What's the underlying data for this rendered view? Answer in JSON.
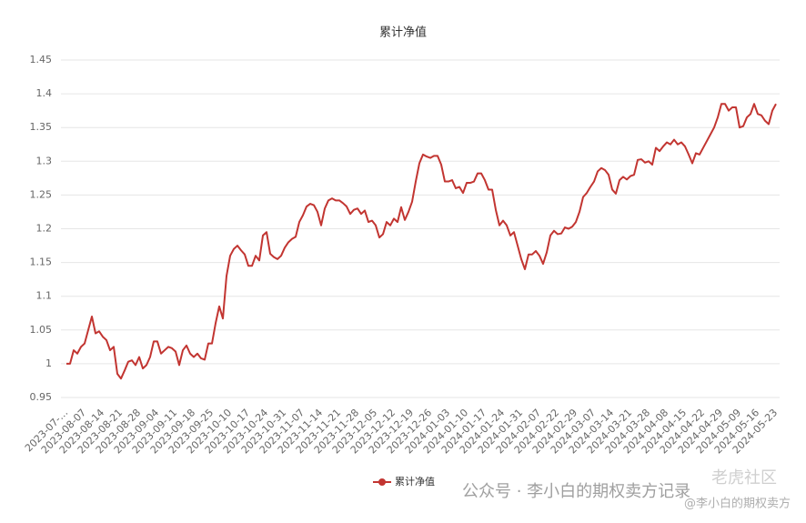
{
  "chart_data": {
    "type": "line",
    "title": "累计净值",
    "categories": [
      "2023-07-…",
      null,
      null,
      null,
      null,
      "2023-08-07",
      null,
      null,
      null,
      null,
      "2023-08-14",
      null,
      null,
      null,
      null,
      "2023-08-21",
      null,
      null,
      null,
      null,
      "2023-08-28",
      null,
      null,
      null,
      null,
      "2023-09-04",
      null,
      null,
      null,
      null,
      "2023-09-11",
      null,
      null,
      null,
      null,
      "2023-09-18",
      null,
      null,
      null,
      null,
      "2023-09-25",
      null,
      null,
      null,
      null,
      "2023-10-10",
      null,
      null,
      null,
      null,
      "2023-10-17",
      null,
      null,
      null,
      null,
      "2023-10-24",
      null,
      null,
      null,
      null,
      "2023-10-31",
      null,
      null,
      null,
      null,
      "2023-11-07",
      null,
      null,
      null,
      null,
      "2023-11-14",
      null,
      null,
      null,
      null,
      "2023-11-21",
      null,
      null,
      null,
      null,
      "2023-11-28",
      null,
      null,
      null,
      null,
      "2023-12-05",
      null,
      null,
      null,
      null,
      "2023-12-12",
      null,
      null,
      null,
      null,
      "2023-12-19",
      null,
      null,
      null,
      null,
      "2023-12-26",
      null,
      null,
      null,
      null,
      "2024-01-03",
      null,
      null,
      null,
      null,
      "2024-01-10",
      null,
      null,
      null,
      null,
      "2024-01-17",
      null,
      null,
      null,
      null,
      "2024-01-24",
      null,
      null,
      null,
      null,
      "2024-01-31",
      null,
      null,
      null,
      null,
      "2024-02-07",
      null,
      null,
      null,
      null,
      "2024-02-22",
      null,
      null,
      null,
      null,
      "2024-02-29",
      null,
      null,
      null,
      null,
      "2024-03-07",
      null,
      null,
      null,
      null,
      "2024-03-14",
      null,
      null,
      null,
      null,
      "2024-03-21",
      null,
      null,
      null,
      null,
      "2024-03-28",
      null,
      null,
      null,
      null,
      "2024-04-08",
      null,
      null,
      null,
      null,
      "2024-04-15",
      null,
      null,
      null,
      null,
      "2024-04-22",
      null,
      null,
      null,
      null,
      "2024-04-29",
      null,
      null,
      null,
      null,
      "2024-05-09",
      null,
      null,
      null,
      null,
      "2024-05-16",
      null,
      null,
      null,
      null,
      "2024-05-23"
    ],
    "series": [
      {
        "name": "累计净值",
        "color": "#c23531",
        "values": [
          1.0,
          1.0,
          1.02,
          1.015,
          1.025,
          1.03,
          1.05,
          1.07,
          1.045,
          1.048,
          1.04,
          1.035,
          1.02,
          1.025,
          0.985,
          0.978,
          0.99,
          1.003,
          1.005,
          0.998,
          1.01,
          0.993,
          0.998,
          1.01,
          1.033,
          1.033,
          1.015,
          1.02,
          1.025,
          1.023,
          1.018,
          0.998,
          1.02,
          1.027,
          1.015,
          1.01,
          1.015,
          1.008,
          1.006,
          1.03,
          1.03,
          1.06,
          1.085,
          1.067,
          1.13,
          1.16,
          1.17,
          1.175,
          1.168,
          1.162,
          1.145,
          1.145,
          1.16,
          1.153,
          1.19,
          1.195,
          1.163,
          1.158,
          1.155,
          1.16,
          1.172,
          1.18,
          1.185,
          1.188,
          1.21,
          1.22,
          1.233,
          1.237,
          1.235,
          1.225,
          1.205,
          1.23,
          1.242,
          1.245,
          1.242,
          1.242,
          1.238,
          1.233,
          1.222,
          1.228,
          1.23,
          1.222,
          1.227,
          1.21,
          1.212,
          1.205,
          1.187,
          1.192,
          1.21,
          1.205,
          1.215,
          1.21,
          1.232,
          1.213,
          1.225,
          1.24,
          1.27,
          1.297,
          1.31,
          1.307,
          1.305,
          1.308,
          1.308,
          1.295,
          1.27,
          1.27,
          1.272,
          1.26,
          1.262,
          1.253,
          1.268,
          1.268,
          1.27,
          1.282,
          1.282,
          1.272,
          1.258,
          1.258,
          1.228,
          1.205,
          1.212,
          1.205,
          1.19,
          1.195,
          1.175,
          1.155,
          1.14,
          1.162,
          1.162,
          1.167,
          1.16,
          1.148,
          1.165,
          1.19,
          1.197,
          1.192,
          1.193,
          1.202,
          1.2,
          1.203,
          1.21,
          1.225,
          1.247,
          1.253,
          1.262,
          1.27,
          1.285,
          1.29,
          1.287,
          1.28,
          1.258,
          1.252,
          1.272,
          1.277,
          1.273,
          1.278,
          1.28,
          1.302,
          1.303,
          1.298,
          1.3,
          1.295,
          1.32,
          1.315,
          1.322,
          1.328,
          1.325,
          1.332,
          1.325,
          1.328,
          1.322,
          1.31,
          1.297,
          1.312,
          1.31,
          1.32,
          1.33,
          1.34,
          1.35,
          1.365,
          1.385,
          1.385,
          1.375,
          1.38,
          1.38,
          1.35,
          1.352,
          1.365,
          1.37,
          1.385,
          1.37,
          1.368,
          1.36,
          1.355,
          1.375,
          1.385
        ]
      }
    ],
    "ylim": [
      0.95,
      1.45
    ],
    "yticks": [
      0.95,
      1,
      1.05,
      1.1,
      1.15,
      1.2,
      1.25,
      1.3,
      1.35,
      1.4,
      1.45
    ],
    "grid": true,
    "legend": "bottom"
  },
  "watermarks": [
    "公众号 · 李小白的期权卖方记录",
    "@李小白的期权卖方",
    "老虎社区"
  ]
}
